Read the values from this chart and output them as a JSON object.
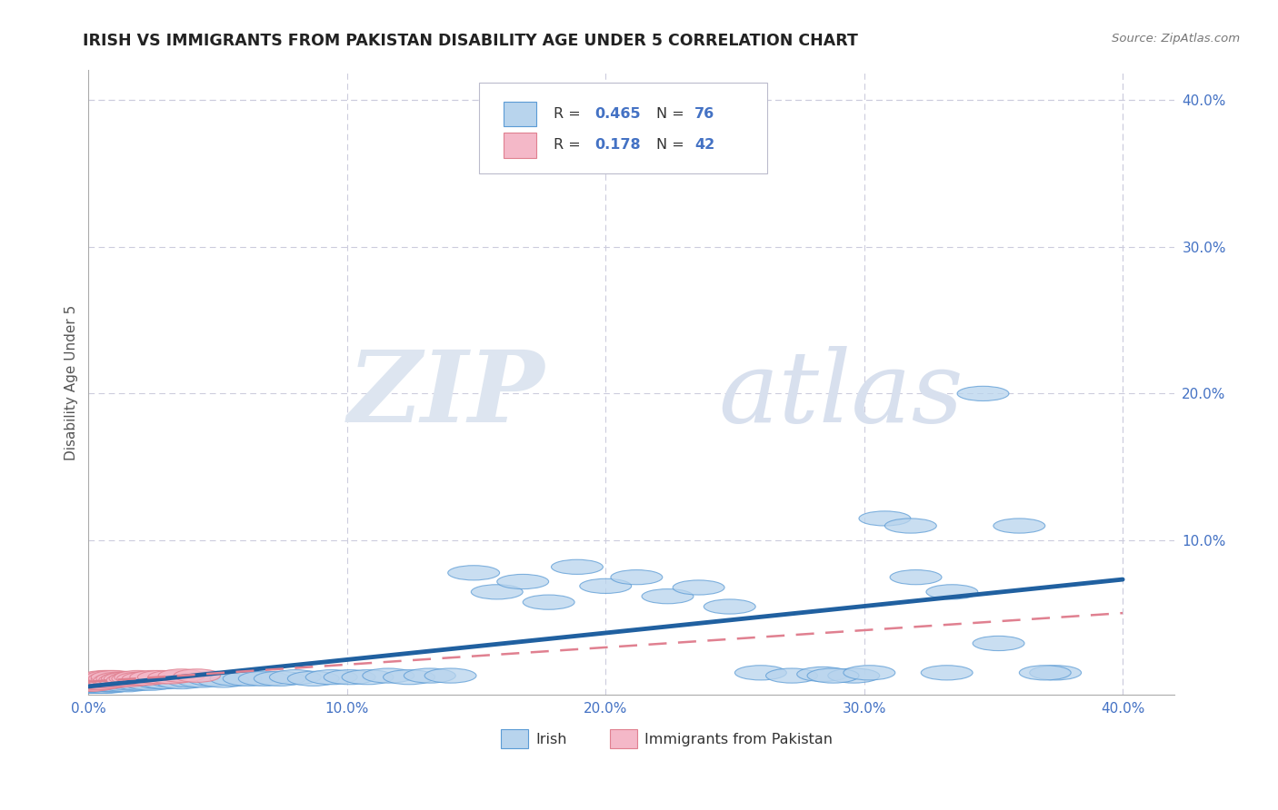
{
  "title": "IRISH VS IMMIGRANTS FROM PAKISTAN DISABILITY AGE UNDER 5 CORRELATION CHART",
  "source": "Source: ZipAtlas.com",
  "ylabel": "Disability Age Under 5",
  "xlim": [
    0.0,
    0.42
  ],
  "ylim": [
    -0.005,
    0.42
  ],
  "xticks": [
    0.0,
    0.1,
    0.2,
    0.3,
    0.4
  ],
  "yticks": [
    0.0,
    0.1,
    0.2,
    0.3,
    0.4
  ],
  "xticklabels": [
    "0.0%",
    "10.0%",
    "20.0%",
    "30.0%",
    "40.0%"
  ],
  "yticklabels": [
    "",
    "10.0%",
    "20.0%",
    "30.0%",
    "40.0%"
  ],
  "irish_color": "#b8d4ed",
  "irish_edge_color": "#5b9bd5",
  "pakistan_color": "#f4b8c8",
  "pakistan_edge_color": "#e08090",
  "irish_line_color": "#2060a0",
  "pakistan_line_color": "#e08090",
  "irish_R": 0.465,
  "irish_N": 76,
  "pakistan_R": 0.178,
  "pakistan_N": 42,
  "legend_R_color": "#4472c4",
  "background_color": "#ffffff",
  "grid_color": "#ccccdd",
  "irish_x": [
    0.001,
    0.002,
    0.003,
    0.003,
    0.004,
    0.004,
    0.005,
    0.005,
    0.006,
    0.006,
    0.007,
    0.007,
    0.008,
    0.008,
    0.009,
    0.009,
    0.01,
    0.011,
    0.012,
    0.013,
    0.014,
    0.015,
    0.016,
    0.017,
    0.018,
    0.02,
    0.022,
    0.024,
    0.026,
    0.028,
    0.03,
    0.033,
    0.036,
    0.04,
    0.044,
    0.048,
    0.052,
    0.057,
    0.062,
    0.068,
    0.074,
    0.08,
    0.087,
    0.094,
    0.101,
    0.108,
    0.116,
    0.124,
    0.132,
    0.14,
    0.149,
    0.158,
    0.168,
    0.178,
    0.189,
    0.2,
    0.212,
    0.224,
    0.236,
    0.248,
    0.26,
    0.272,
    0.284,
    0.296,
    0.308,
    0.32,
    0.332,
    0.346,
    0.36,
    0.374,
    0.288,
    0.302,
    0.318,
    0.334,
    0.352,
    0.37
  ],
  "irish_y": [
    0.001,
    0.002,
    0.001,
    0.003,
    0.002,
    0.003,
    0.001,
    0.003,
    0.002,
    0.004,
    0.001,
    0.003,
    0.002,
    0.004,
    0.002,
    0.003,
    0.003,
    0.002,
    0.004,
    0.003,
    0.003,
    0.002,
    0.004,
    0.003,
    0.004,
    0.003,
    0.004,
    0.003,
    0.005,
    0.004,
    0.004,
    0.005,
    0.004,
    0.005,
    0.005,
    0.006,
    0.005,
    0.006,
    0.006,
    0.006,
    0.006,
    0.007,
    0.006,
    0.007,
    0.007,
    0.007,
    0.008,
    0.007,
    0.008,
    0.008,
    0.078,
    0.065,
    0.072,
    0.058,
    0.082,
    0.069,
    0.075,
    0.062,
    0.068,
    0.055,
    0.01,
    0.008,
    0.009,
    0.008,
    0.115,
    0.075,
    0.01,
    0.2,
    0.11,
    0.01,
    0.008,
    0.01,
    0.11,
    0.065,
    0.03,
    0.01
  ],
  "pakistan_x": [
    0.0,
    0.001,
    0.001,
    0.001,
    0.002,
    0.002,
    0.002,
    0.003,
    0.003,
    0.003,
    0.004,
    0.004,
    0.004,
    0.005,
    0.005,
    0.005,
    0.006,
    0.006,
    0.007,
    0.007,
    0.008,
    0.008,
    0.009,
    0.009,
    0.01,
    0.01,
    0.011,
    0.012,
    0.013,
    0.014,
    0.015,
    0.016,
    0.017,
    0.018,
    0.019,
    0.02,
    0.022,
    0.025,
    0.028,
    0.032,
    0.036,
    0.042
  ],
  "pakistan_y": [
    0.002,
    0.003,
    0.004,
    0.002,
    0.003,
    0.005,
    0.002,
    0.004,
    0.006,
    0.003,
    0.005,
    0.003,
    0.006,
    0.004,
    0.006,
    0.003,
    0.005,
    0.007,
    0.004,
    0.006,
    0.005,
    0.007,
    0.004,
    0.006,
    0.005,
    0.007,
    0.005,
    0.006,
    0.005,
    0.006,
    0.006,
    0.005,
    0.006,
    0.006,
    0.007,
    0.006,
    0.006,
    0.007,
    0.007,
    0.007,
    0.008,
    0.008
  ]
}
